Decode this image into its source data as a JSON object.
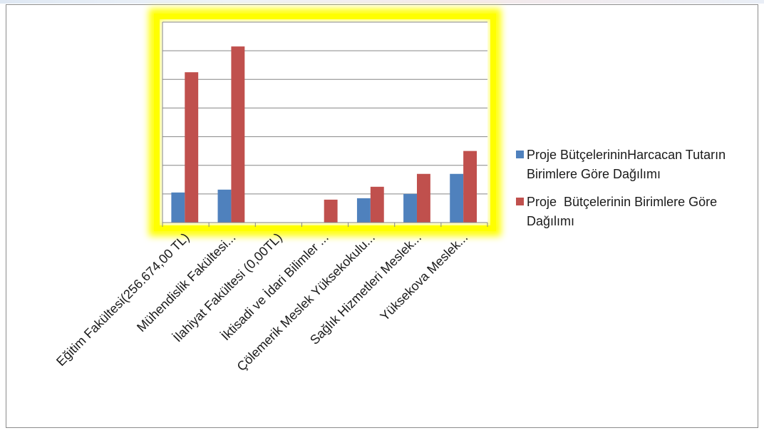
{
  "chart_data": {
    "type": "bar",
    "categories": [
      "Eğitim Fakültesi(256.674,00 TL)",
      "Mühendislik Fakültesi...",
      "İlahiyat Fakültesi (0,00TL)",
      "İktisadi ve İdari Bilimler ...",
      "Çölemerik Meslek Yüksekokulu...",
      "Sağlık Hizmetleri Meslek...",
      "Yüksekova Meslek..."
    ],
    "series": [
      {
        "name": "Proje BütçelerininHarcacan Tutarın Birimlere Göre Dağılımı",
        "color": "#4f81bd",
        "values": [
          1.05,
          1.15,
          0,
          0,
          0.85,
          1.0,
          1.7
        ]
      },
      {
        "name": "Proje  Bütçelerinin Birimlere Göre Dağılımı",
        "color": "#c0504d",
        "values": [
          5.25,
          6.15,
          0,
          0.8,
          1.25,
          1.7,
          2.5
        ]
      }
    ],
    "ylim": [
      0,
      7
    ],
    "gridlines": 7,
    "grid": true,
    "legend": "right",
    "plot_highlight_color": "#ffff00",
    "title": "",
    "xlabel": "",
    "ylabel": ""
  }
}
